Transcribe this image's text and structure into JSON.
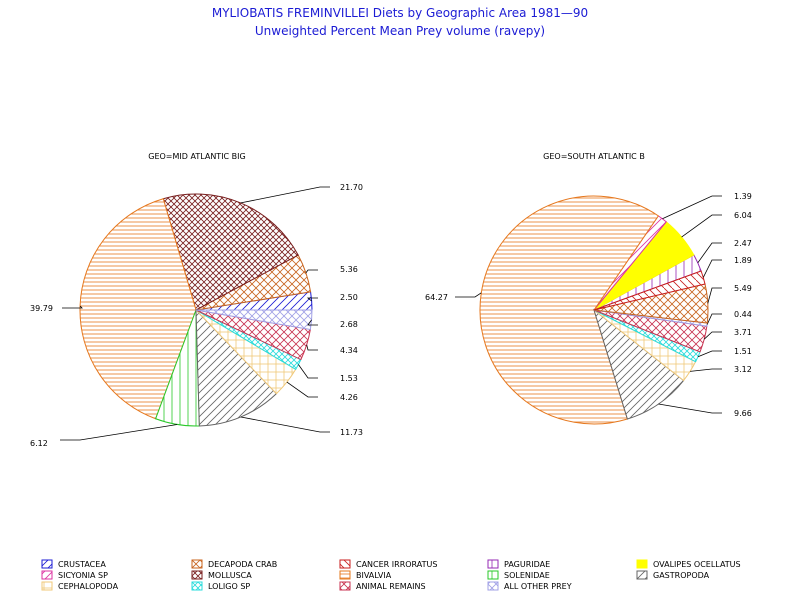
{
  "chart_data": {
    "type": "pie",
    "title": "MYLIOBATIS FREMINVILLEI Diets by Geographic Area 1981—90",
    "subtitle": "Unweighted Percent Mean Prey volume (ravepy)",
    "colors": {
      "title": "#1b1bd4",
      "crustacea": "#1b1bd4",
      "decapoda_crab": "#c8641e",
      "cancer_irroratus": "#c81e1e",
      "paguridae": "#9628b4",
      "ovalipes_ocellatus": "#ffff00",
      "sicyonia_sp": "#dc32a0",
      "mollusca": "#781e1e",
      "bivalvia": "#e6781e",
      "solenidae": "#28c828",
      "gastropoda": "#646464",
      "cephalopoda": "#f0c878",
      "loligo_sp": "#28dcdc",
      "animal_remains": "#c83250",
      "all_other_prey": "#a0a0e6"
    },
    "legend": {
      "position": "bottom",
      "entries": [
        {
          "key": "crustacea",
          "label": "CRUSTACEA"
        },
        {
          "key": "decapoda_crab",
          "label": "DECAPODA CRAB"
        },
        {
          "key": "cancer_irroratus",
          "label": "CANCER IRRORATUS"
        },
        {
          "key": "paguridae",
          "label": "PAGURIDAE"
        },
        {
          "key": "ovalipes_ocellatus",
          "label": "OVALIPES OCELLATUS"
        },
        {
          "key": "sicyonia_sp",
          "label": "SICYONIA SP"
        },
        {
          "key": "mollusca",
          "label": "MOLLUSCA"
        },
        {
          "key": "bivalvia",
          "label": "BIVALVIA"
        },
        {
          "key": "solenidae",
          "label": "SOLENIDAE"
        },
        {
          "key": "gastropoda",
          "label": "GASTROPODA"
        },
        {
          "key": "cephalopoda",
          "label": "CEPHALOPODA"
        },
        {
          "key": "loligo_sp",
          "label": "LOLIGO SP"
        },
        {
          "key": "animal_remains",
          "label": "ANIMAL REMAINS"
        },
        {
          "key": "all_other_prey",
          "label": "ALL OTHER PREY"
        }
      ]
    },
    "pies": [
      {
        "geo": "GEO=MID ATLANTIC BIG",
        "slices": [
          {
            "key": "crustacea",
            "value": 2.5,
            "label": "2.50"
          },
          {
            "key": "decapoda_crab",
            "value": 5.36,
            "label": "5.36"
          },
          {
            "key": "mollusca",
            "value": 21.7,
            "label": "21.70"
          },
          {
            "key": "bivalvia",
            "value": 39.79,
            "label": "39.79"
          },
          {
            "key": "solenidae",
            "value": 6.12,
            "label": "6.12"
          },
          {
            "key": "gastropoda",
            "value": 11.73,
            "label": "11.73"
          },
          {
            "key": "cephalopoda",
            "value": 4.26,
            "label": "4.26"
          },
          {
            "key": "loligo_sp",
            "value": 1.53,
            "label": "1.53"
          },
          {
            "key": "animal_remains",
            "value": 4.34,
            "label": "4.34"
          },
          {
            "key": "all_other_prey",
            "value": 2.68,
            "label": "2.68"
          }
        ]
      },
      {
        "geo": "GEO=SOUTH ATLANTIC B",
        "slices": [
          {
            "key": "paguridae",
            "value": 2.47,
            "label": "2.47"
          },
          {
            "key": "ovalipes_ocellatus",
            "value": 6.04,
            "label": "6.04"
          },
          {
            "key": "sicyonia_sp",
            "value": 1.39,
            "label": "1.39"
          },
          {
            "key": "bivalvia",
            "value": 64.27,
            "label": "64.27"
          },
          {
            "key": "gastropoda",
            "value": 9.66,
            "label": "9.66"
          },
          {
            "key": "cephalopoda",
            "value": 3.12,
            "label": "3.12"
          },
          {
            "key": "loligo_sp",
            "value": 1.51,
            "label": "1.51"
          },
          {
            "key": "animal_remains",
            "value": 3.71,
            "label": "3.71"
          },
          {
            "key": "all_other_prey",
            "value": 0.44,
            "label": "0.44"
          },
          {
            "key": "decapoda_crab",
            "value": 5.49,
            "label": "5.49"
          },
          {
            "key": "cancer_irroratus",
            "value": 1.89,
            "label": "1.89"
          }
        ]
      }
    ]
  }
}
